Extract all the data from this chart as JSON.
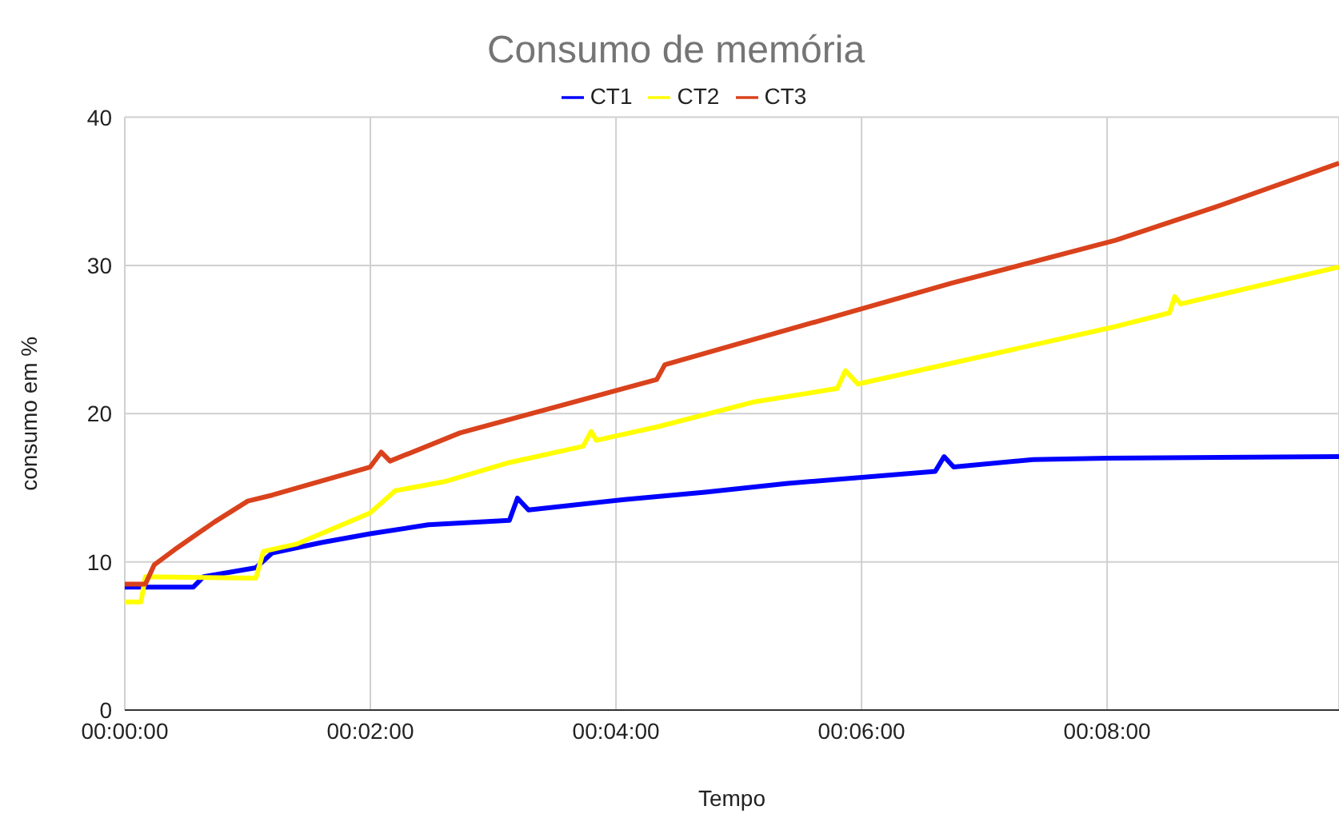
{
  "chart_data": {
    "type": "line",
    "title": "Consumo de memória",
    "xlabel": "Tempo",
    "ylabel": "consumo em %",
    "legend": "top",
    "grid": true,
    "marker": "none",
    "line_style": "solid",
    "xlim": [
      0,
      0.1648
    ],
    "xticks": [
      {
        "value": 0,
        "label": "00:00:00"
      },
      {
        "value": 0.03333,
        "label": "00:02:00"
      },
      {
        "value": 0.06667,
        "label": "00:04:00"
      },
      {
        "value": 0.1,
        "label": "00:06:00"
      },
      {
        "value": 0.13333,
        "label": "00:08:00"
      }
    ],
    "ylim": [
      0,
      40
    ],
    "yticks": [
      0,
      10,
      20,
      30,
      40
    ],
    "series": [
      {
        "name": "CT1",
        "color": "#0000ff",
        "x": [
          0,
          0.0093,
          0.0107,
          0.0178,
          0.02,
          0.0267,
          0.0333,
          0.0412,
          0.0522,
          0.0533,
          0.0548,
          0.0678,
          0.0788,
          0.09,
          0.11,
          0.1112,
          0.1125,
          0.1233,
          0.1333,
          0.1648
        ],
        "values": [
          8.3,
          8.3,
          9.0,
          9.6,
          10.6,
          11.3,
          11.9,
          12.5,
          12.8,
          14.3,
          13.5,
          14.2,
          14.7,
          15.3,
          16.1,
          17.1,
          16.4,
          16.9,
          17.0,
          17.1
        ]
      },
      {
        "name": "CT2",
        "color": "#ffff00",
        "x": [
          0,
          0.0022,
          0.0028,
          0.0178,
          0.0188,
          0.0233,
          0.0333,
          0.0367,
          0.0433,
          0.0522,
          0.0622,
          0.0633,
          0.064,
          0.0722,
          0.0855,
          0.0967,
          0.0978,
          0.0995,
          0.1122,
          0.1338,
          0.1418,
          0.1425,
          0.1433,
          0.1648
        ],
        "values": [
          7.3,
          7.3,
          9.0,
          8.9,
          10.7,
          11.2,
          13.3,
          14.8,
          15.4,
          16.7,
          17.8,
          18.8,
          18.2,
          19.1,
          20.8,
          21.7,
          22.9,
          22.0,
          23.4,
          25.8,
          26.8,
          27.9,
          27.4,
          29.9
        ]
      },
      {
        "name": "CT3",
        "color": "#d9421c",
        "x": [
          0,
          0.0028,
          0.004,
          0.0067,
          0.0122,
          0.0167,
          0.02,
          0.0333,
          0.0348,
          0.036,
          0.0455,
          0.0722,
          0.0733,
          0.1122,
          0.1345,
          0.1478,
          0.1648
        ],
        "values": [
          8.5,
          8.5,
          9.8,
          10.8,
          12.7,
          14.1,
          14.5,
          16.4,
          17.4,
          16.8,
          18.7,
          22.3,
          23.3,
          28.8,
          31.7,
          33.9,
          36.9
        ]
      }
    ]
  }
}
